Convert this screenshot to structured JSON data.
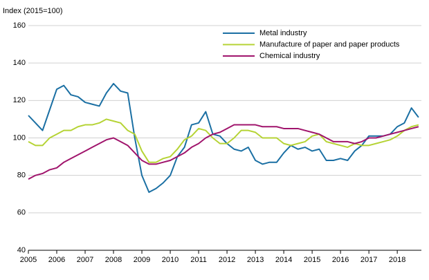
{
  "chart_data": {
    "type": "line",
    "y_label": "Index (2015=100)",
    "x": [
      2005,
      2005.25,
      2005.5,
      2005.75,
      2006,
      2006.25,
      2006.5,
      2006.75,
      2007,
      2007.25,
      2007.5,
      2007.75,
      2008,
      2008.25,
      2008.5,
      2008.75,
      2009,
      2009.25,
      2009.5,
      2009.75,
      2010,
      2010.25,
      2010.5,
      2010.75,
      2011,
      2011.25,
      2011.5,
      2011.75,
      2012,
      2012.25,
      2012.5,
      2012.75,
      2013,
      2013.25,
      2013.5,
      2013.75,
      2014,
      2014.25,
      2014.5,
      2014.75,
      2015,
      2015.25,
      2015.5,
      2015.75,
      2016,
      2016.25,
      2016.5,
      2016.75,
      2017,
      2017.25,
      2017.5,
      2017.75,
      2018,
      2018.25,
      2018.5,
      2018.75
    ],
    "series": [
      {
        "name": "Metal industry",
        "color": "#1a6fa3",
        "values": [
          112,
          108,
          104,
          115,
          126,
          128,
          123,
          122,
          119,
          118,
          117,
          124,
          129,
          125,
          124,
          100,
          80,
          71,
          73,
          76,
          80,
          90,
          95,
          107,
          108,
          114,
          102,
          101,
          97,
          94,
          93,
          95,
          88,
          86,
          87,
          87,
          92,
          96,
          94,
          95,
          93,
          94,
          88,
          88,
          89,
          88,
          93,
          96,
          101,
          101,
          101,
          102,
          106,
          108,
          116,
          111
        ]
      },
      {
        "name": "Manufacture of paper and paper products",
        "color": "#b5d334",
        "values": [
          98,
          96,
          96,
          100,
          102,
          104,
          104,
          106,
          107,
          107,
          108,
          110,
          109,
          108,
          104,
          102,
          93,
          87,
          87,
          89,
          90,
          94,
          99,
          101,
          105,
          104,
          100,
          97,
          97,
          100,
          104,
          104,
          103,
          100,
          100,
          100,
          97,
          96,
          97,
          98,
          101,
          102,
          98,
          97,
          96,
          95,
          97,
          96,
          96,
          97,
          98,
          99,
          101,
          104,
          106,
          107
        ]
      },
      {
        "name": "Chemical industry",
        "color": "#a0146c",
        "values": [
          78,
          80,
          81,
          83,
          84,
          87,
          89,
          91,
          93,
          95,
          97,
          99,
          100,
          98,
          96,
          92,
          88,
          86,
          86,
          87,
          88,
          90,
          92,
          95,
          97,
          100,
          102,
          103,
          105,
          107,
          107,
          107,
          107,
          106,
          106,
          106,
          105,
          105,
          105,
          104,
          103,
          102,
          100,
          98,
          98,
          98,
          97,
          98,
          100,
          100,
          101,
          102,
          103,
          104,
          105,
          106
        ]
      }
    ],
    "xlim": [
      2005,
      2018.85
    ],
    "xticks": [
      2005,
      2006,
      2007,
      2008,
      2009,
      2010,
      2011,
      2012,
      2013,
      2014,
      2015,
      2016,
      2017,
      2018
    ],
    "ylim": [
      40,
      160
    ],
    "yticks": [
      40,
      60,
      80,
      100,
      120,
      140,
      160
    ],
    "grid": true
  }
}
